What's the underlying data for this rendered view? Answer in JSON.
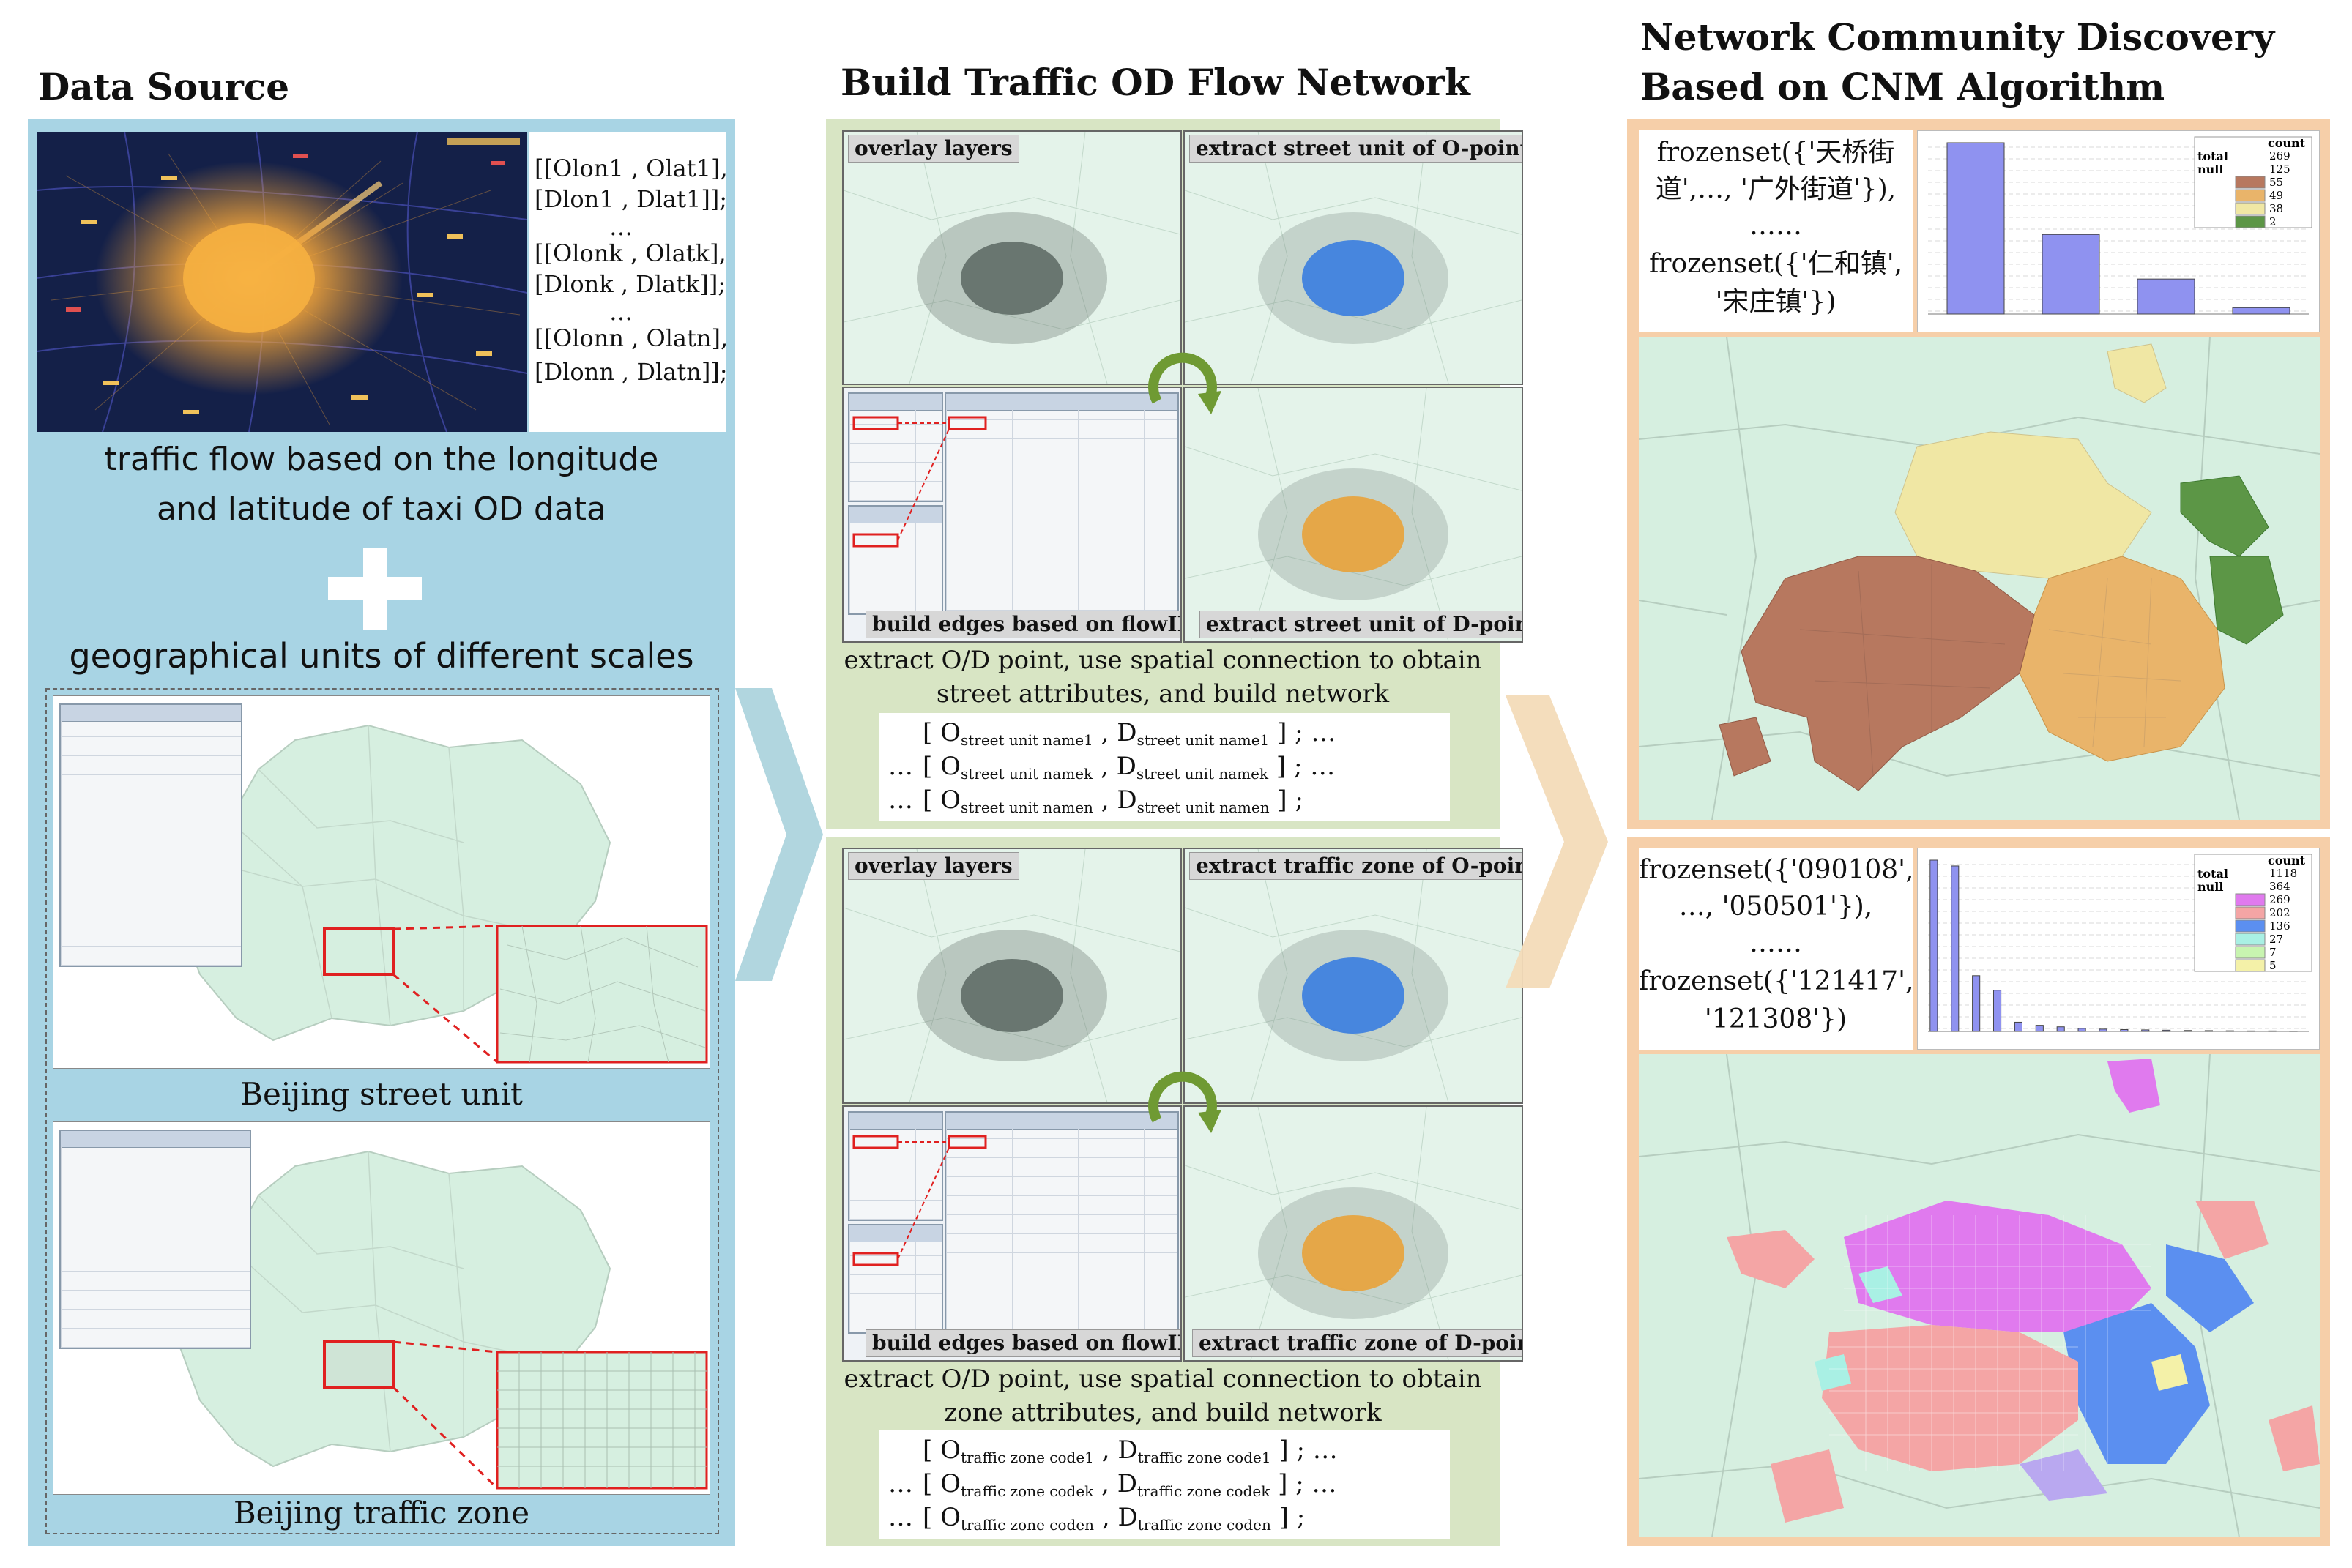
{
  "titles": {
    "data_source": "Data Source",
    "build_network": "Build Traffic OD Flow Network",
    "community_line1": "Network Community Discovery",
    "community_line2": "Based on CNM Algorithm"
  },
  "data_source": {
    "od_lines": [
      "[[Olon1 , Olat1],",
      "[Dlon1 , Dlat1]];",
      "…",
      "[[Olonk , Olatk],",
      "[Dlonk , Dlatk]];",
      "…",
      "[[Olonn , Olatn],",
      "[Dlonn , Dlatn]];"
    ],
    "taxi_caption_line1": "traffic flow based on the longitude",
    "taxi_caption_line2": "and latitude of taxi OD data",
    "plus": "+",
    "geo_caption": "geographical units of different scales",
    "street_caption": "Beijing street unit",
    "zone_caption": "Beijing traffic zone"
  },
  "network": {
    "street_block": {
      "overlay": "overlay layers",
      "extract_o": "extract street unit of O-point",
      "build_edges": "build edges based on flowID",
      "extract_d": "extract street unit of D-point",
      "caption_line1": "extract O/D point, use spatial connection to obtain",
      "caption_line2": "street attributes, and build network",
      "rows": [
        {
          "prefix": "[",
          "o": "O",
          "o_sub": "street unit name1",
          "d": "D",
          "d_sub": "street unit name1",
          "suffix": "] ;  …",
          "lead": ""
        },
        {
          "prefix": "[",
          "o": "O",
          "o_sub": "street unit namek",
          "d": "D",
          "d_sub": "street unit namek",
          "suffix": "] ;  …",
          "lead": "…"
        },
        {
          "prefix": "[",
          "o": "O",
          "o_sub": "street unit namen",
          "d": "D",
          "d_sub": "street unit namen",
          "suffix": "] ;",
          "lead": "…"
        }
      ]
    },
    "zone_block": {
      "overlay": "overlay layers",
      "extract_o": "extract traffic zone of O-point",
      "build_edges": "build edges based on flowID",
      "extract_d": "extract traffic zone of D-point",
      "caption_line1": "extract O/D point, use spatial connection to obtain",
      "caption_line2": "zone attributes, and build network",
      "rows": [
        {
          "prefix": "[",
          "o": "O",
          "o_sub": "traffic zone code1",
          "d": "D",
          "d_sub": "traffic zone code1",
          "suffix": "] ;  …",
          "lead": ""
        },
        {
          "prefix": "[",
          "o": "O",
          "o_sub": "traffic zone codek",
          "d": "D",
          "d_sub": "traffic zone codek",
          "suffix": "] ;  …",
          "lead": "…"
        },
        {
          "prefix": "[",
          "o": "O",
          "o_sub": "traffic zone coden",
          "d": "D",
          "d_sub": "traffic zone coden",
          "suffix": "] ;",
          "lead": "…"
        }
      ]
    }
  },
  "community": {
    "street": {
      "frozen_lines": [
        "frozenset({'天桥街",
        "道',…, '广外街道'}),",
        "……",
        "frozenset({'仁和镇',",
        "'宋庄镇'})"
      ],
      "legend_title": "count",
      "legend_left": "total\nnull",
      "legend": [
        {
          "label": "269",
          "color": "#ffffff"
        },
        {
          "label": "125",
          "color": "#ffffff"
        },
        {
          "label": "55",
          "color": "#b7785f"
        },
        {
          "label": "49",
          "color": "#e9b46a"
        },
        {
          "label": "38",
          "color": "#f0e7a4"
        },
        {
          "label": "2",
          "color": "#5c9646"
        }
      ],
      "bars": [
        269,
        125,
        55,
        10
      ],
      "bar_color": "#8f92f0"
    },
    "zone": {
      "frozen_lines": [
        "frozenset({'090108',",
        "…, '050501'}),",
        "……",
        "frozenset({'121417',",
        "'121308'})"
      ],
      "legend_title": "count",
      "legend_left": "total\nnull",
      "legend": [
        {
          "label": "1118",
          "color": "#ffffff"
        },
        {
          "label": "364",
          "color": "#ffffff"
        },
        {
          "label": "269",
          "color": "#e07aee"
        },
        {
          "label": "202",
          "color": "#f4a5a5"
        },
        {
          "label": "136",
          "color": "#5b8ff0"
        },
        {
          "label": "27",
          "color": "#a9f0e4"
        },
        {
          "label": "7",
          "color": "#c8f4b0"
        },
        {
          "label": "5",
          "color": "#f4f1a8"
        }
      ],
      "bars": [
        1118,
        1080,
        364,
        269,
        60,
        40,
        30,
        20,
        15,
        12,
        10,
        8,
        6,
        5,
        4,
        3,
        3,
        2
      ],
      "bar_color": "#8f92f0"
    }
  },
  "colors": {
    "data_panel": "#a8d4e4",
    "network_panel": "#d8e5c4",
    "community_panel": "#f6cfa9",
    "map_fill": "#d6efe0",
    "map_line": "#b6cdbf",
    "arrow1": "#a9d1dc",
    "arrow2": "#f3dbb8"
  }
}
